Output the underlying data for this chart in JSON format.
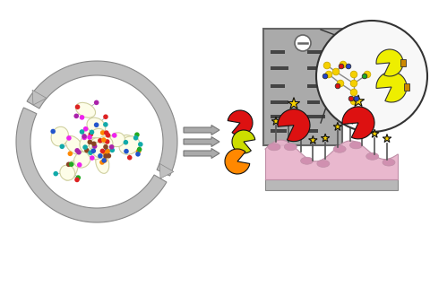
{
  "bg_color": "#ffffff",
  "arrow_color": "#c0c0c0",
  "arrow_edge": "#888888",
  "blob_color": "#fdfde8",
  "blob_edge": "#d0d0a0",
  "pacman_colors": [
    "#dd1111",
    "#ccdd00",
    "#ff8800"
  ],
  "surface_color": "#e8b4cc",
  "surface_edge": "#c090a8",
  "platform_color": "#b8b8b8",
  "platform_edge": "#888888",
  "gel_color": "#aaaaaa",
  "gel_edge": "#666666",
  "gel_band_color": "#444444",
  "circle_zoom_color": "#f8f8f8",
  "circle_zoom_edge": "#333333",
  "star_color": "#f5d000",
  "star_edge": "#111111",
  "red_pacman_color": "#dd1111",
  "yellow_pacman_color": "#eeee00",
  "glycan_line_color": "#888888",
  "dot_colors_blob": [
    "#dd2222",
    "#2255cc",
    "#22aa22",
    "#aa22aa",
    "#ff8800",
    "#ee22ee",
    "#11aaaa",
    "#884422"
  ],
  "double_arrow_color": "#aaaaaa",
  "double_arrow_edge": "#777777"
}
